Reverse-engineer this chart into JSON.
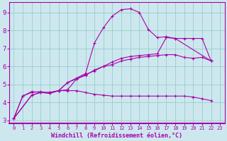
{
  "xlabel": "Windchill (Refroidissement éolien,°C)",
  "bg_color": "#cce8ee",
  "line_color": "#aa00aa",
  "grid_color": "#99cccc",
  "xlim": [
    -0.5,
    23.5
  ],
  "ylim": [
    2.85,
    9.55
  ],
  "yticks": [
    3,
    4,
    5,
    6,
    7,
    8,
    9
  ],
  "xticks": [
    0,
    1,
    2,
    3,
    4,
    5,
    6,
    7,
    8,
    9,
    10,
    11,
    12,
    13,
    14,
    15,
    16,
    17,
    18,
    19,
    20,
    21,
    22,
    23
  ],
  "lines": [
    {
      "x": [
        0,
        2,
        3,
        4,
        5,
        6,
        7,
        8,
        9,
        10,
        11,
        12,
        13,
        14,
        15,
        16,
        17,
        18,
        22
      ],
      "y": [
        3.1,
        4.4,
        4.55,
        4.55,
        4.65,
        5.1,
        5.35,
        5.6,
        7.3,
        8.15,
        8.8,
        9.15,
        9.2,
        9.0,
        8.05,
        7.6,
        7.65,
        7.55,
        6.3
      ]
    },
    {
      "x": [
        0,
        2,
        3,
        4,
        5,
        6,
        7,
        8,
        9,
        10,
        11,
        12,
        13,
        14,
        15,
        16,
        17,
        18,
        19,
        20,
        21,
        22
      ],
      "y": [
        3.1,
        4.4,
        4.55,
        4.5,
        4.65,
        5.1,
        5.3,
        5.55,
        5.75,
        6.0,
        6.25,
        6.45,
        6.55,
        6.6,
        6.65,
        6.7,
        7.6,
        7.55,
        7.55,
        7.55,
        7.55,
        6.3
      ]
    },
    {
      "x": [
        0,
        1,
        2,
        3,
        4,
        5,
        6,
        7,
        8,
        9,
        10,
        11,
        12,
        13,
        14,
        15,
        16,
        17,
        18,
        19,
        20,
        21,
        22
      ],
      "y": [
        3.1,
        4.35,
        4.6,
        4.55,
        4.55,
        4.65,
        4.7,
        5.3,
        5.5,
        5.8,
        6.0,
        6.1,
        6.3,
        6.4,
        6.5,
        6.55,
        6.6,
        6.65,
        6.65,
        6.5,
        6.45,
        6.5,
        6.3
      ]
    },
    {
      "x": [
        0,
        1,
        2,
        3,
        4,
        5,
        6,
        7,
        8,
        9,
        10,
        11,
        12,
        13,
        14,
        15,
        16,
        17,
        18,
        19,
        20,
        21,
        22
      ],
      "y": [
        3.1,
        4.35,
        4.55,
        4.6,
        4.5,
        4.65,
        4.65,
        4.65,
        4.55,
        4.45,
        4.4,
        4.35,
        4.35,
        4.35,
        4.35,
        4.35,
        4.35,
        4.35,
        4.35,
        4.35,
        4.3,
        4.2,
        4.1
      ]
    }
  ]
}
